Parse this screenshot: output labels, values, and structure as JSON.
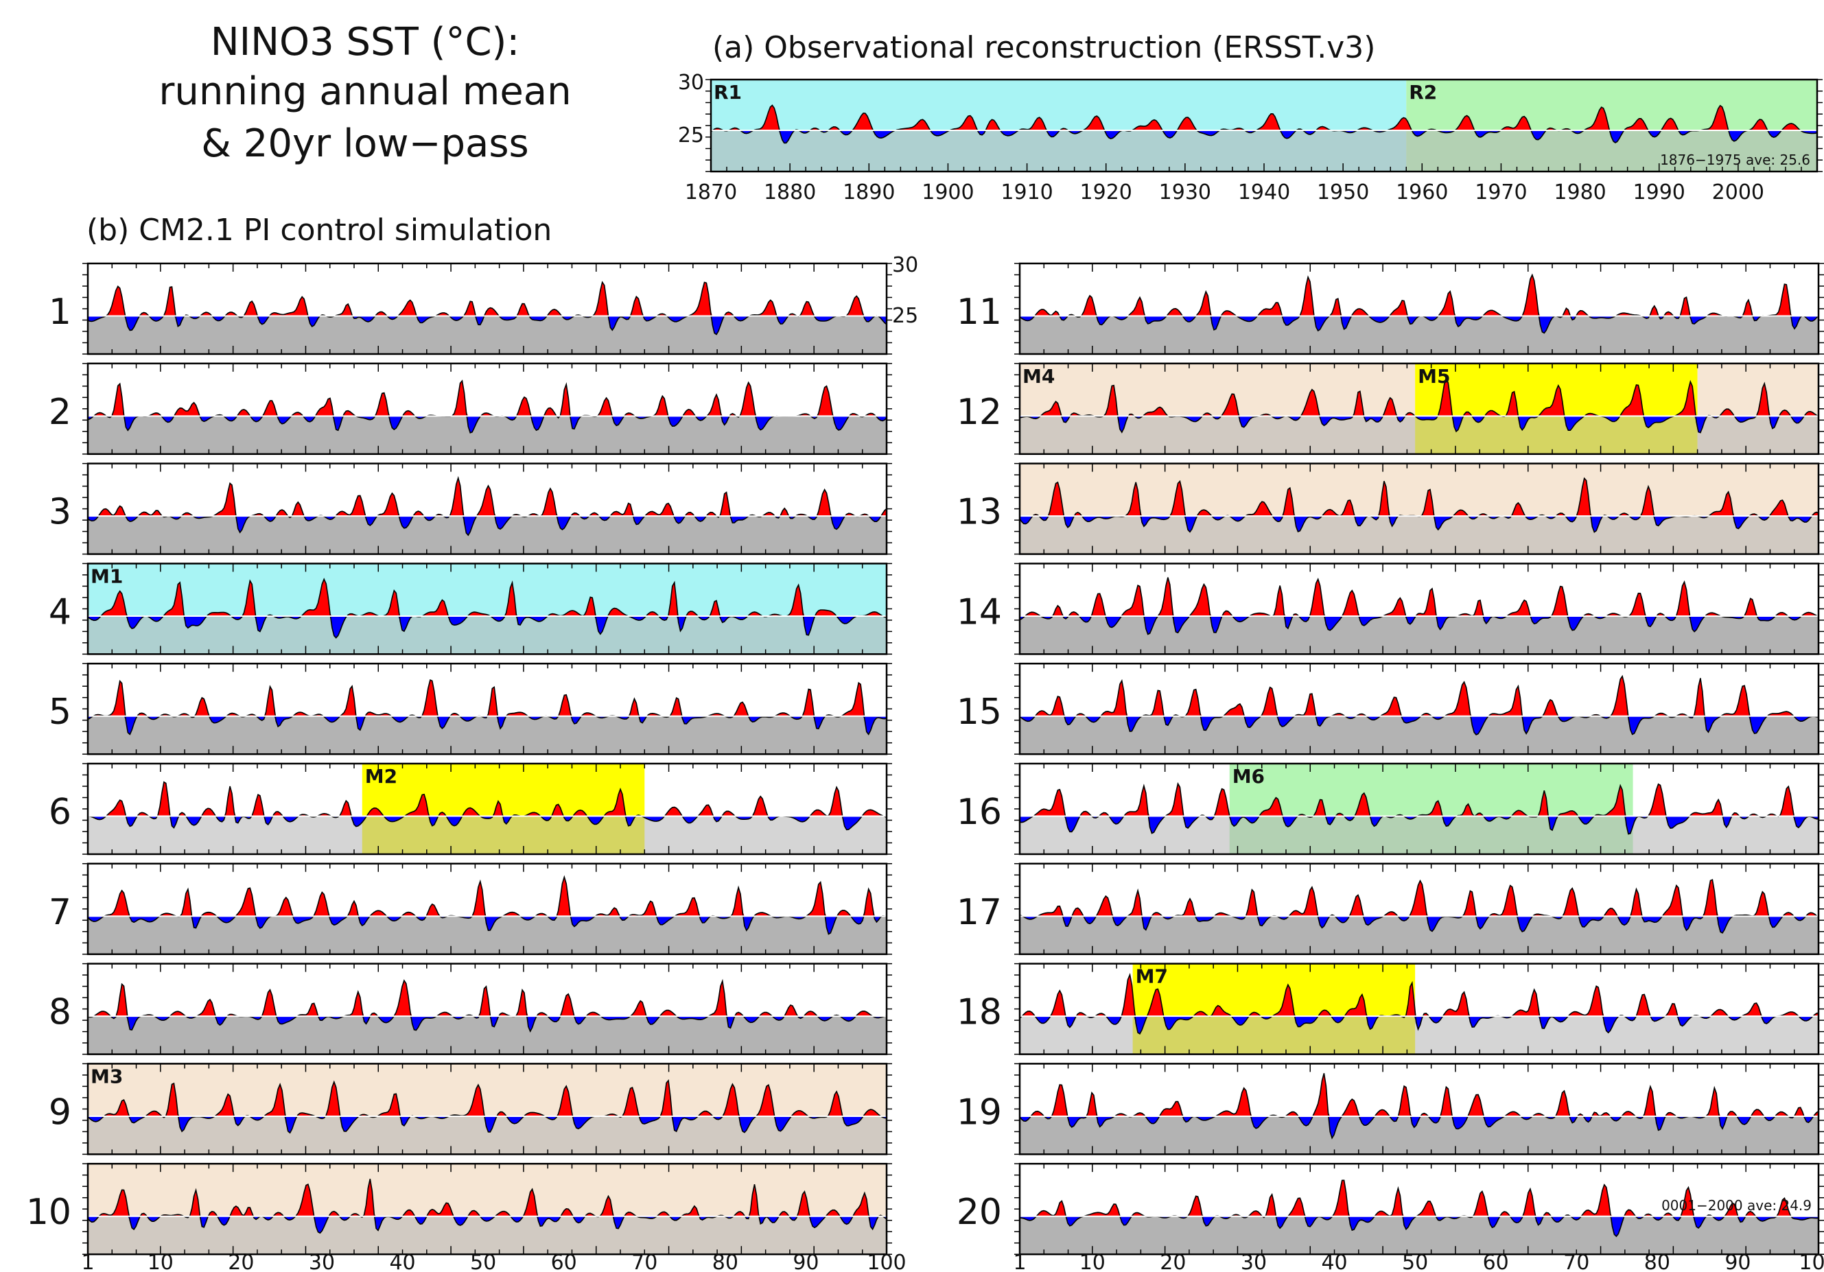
{
  "figure": {
    "title_lines": [
      "NINO3 SST (°C):",
      "running annual mean",
      "& 20yr low−pass"
    ],
    "panel_a_title": "(a) Observational reconstruction (ERSST.v3)",
    "panel_b_title": "(b) CM2.1 PI control simulation",
    "colors": {
      "warm": "#ff0000",
      "cold": "#0000ff",
      "base_fill": "#b3b3b3",
      "cyan": "#a8f4f4",
      "green": "#b3f5b3",
      "tan": "#f6e6d4",
      "yellow": "#ffff00"
    }
  },
  "chart_data": [
    {
      "type": "area",
      "panel": "a",
      "title": "(a) Observational reconstruction (ERSST.v3)",
      "xlim": [
        1870,
        2010
      ],
      "ylim": [
        23,
        30
      ],
      "x_ticks": [
        "1870",
        "1880",
        "1890",
        "1900",
        "1910",
        "1920",
        "1930",
        "1940",
        "1950",
        "1960",
        "1970",
        "1980",
        "1990",
        "2000"
      ],
      "y_ticks": [
        "30",
        "25"
      ],
      "baseline_mean": 25.6,
      "annotation": "1876−1975 ave: 25.6",
      "highlight_regions": [
        {
          "label": "R1",
          "start": 1870,
          "end": 1958,
          "color": "cyan"
        },
        {
          "label": "R2",
          "start": 1958,
          "end": 2010,
          "color": "green"
        }
      ],
      "series": [
        {
          "name": "running annual mean",
          "peaks": [
            [
              1877.8,
              27.7
            ],
            [
              1889.5,
              27.1
            ],
            [
              1896.8,
              26.8
            ],
            [
              1902.8,
              27.0
            ],
            [
              1905.5,
              26.9
            ],
            [
              1911.5,
              26.8
            ],
            [
              1918.8,
              26.7
            ],
            [
              1926.0,
              26.9
            ],
            [
              1930.5,
              26.9
            ],
            [
              1941.0,
              27.3
            ],
            [
              1957.8,
              26.9
            ],
            [
              1965.8,
              26.7
            ],
            [
              1972.8,
              26.9
            ],
            [
              1982.8,
              27.7
            ],
            [
              1987.5,
              27.0
            ],
            [
              1991.8,
              26.9
            ],
            [
              1997.8,
              28.1
            ],
            [
              2002.8,
              26.6
            ],
            [
              2007.0,
              26.2
            ]
          ]
        }
      ]
    },
    {
      "type": "area",
      "panel": "b",
      "title": "(b) CM2.1 PI control simulation",
      "xlim": [
        1,
        100
      ],
      "ylim": [
        22,
        30
      ],
      "x_ticks": [
        "1",
        "10",
        "20",
        "30",
        "40",
        "50",
        "60",
        "70",
        "80",
        "90",
        "100"
      ],
      "y_ticks": [
        "30",
        "25"
      ],
      "baseline_mean": 24.9,
      "annotation": "0001−2000 ave: 24.9",
      "rows": [
        {
          "label": "1",
          "col": 0
        },
        {
          "label": "2",
          "col": 0
        },
        {
          "label": "3",
          "col": 0
        },
        {
          "label": "4",
          "col": 0,
          "box": {
            "label": "M1",
            "start": 1,
            "end": 100,
            "color": "cyan"
          }
        },
        {
          "label": "5",
          "col": 0
        },
        {
          "label": "6",
          "col": 0,
          "box": {
            "label": "M2",
            "start": 35,
            "end": 70,
            "color": "yellow"
          }
        },
        {
          "label": "7",
          "col": 0
        },
        {
          "label": "8",
          "col": 0
        },
        {
          "label": "9",
          "col": 0,
          "box": {
            "label": "M3",
            "start": 1,
            "end": 100,
            "color": "tan"
          }
        },
        {
          "label": "10",
          "col": 0,
          "box": {
            "label": "",
            "start": 1,
            "end": 100,
            "color": "tan"
          }
        },
        {
          "label": "11",
          "col": 1
        },
        {
          "label": "12",
          "col": 1,
          "boxes": [
            {
              "label": "M4",
              "start": 1,
              "end": 50,
              "color": "tan"
            },
            {
              "label": "M5",
              "start": 50,
              "end": 85,
              "color": "yellow"
            },
            {
              "label": "",
              "start": 85,
              "end": 100,
              "color": "tan"
            }
          ]
        },
        {
          "label": "13",
          "col": 1,
          "box": {
            "label": "",
            "start": 1,
            "end": 100,
            "color": "tan"
          }
        },
        {
          "label": "14",
          "col": 1
        },
        {
          "label": "15",
          "col": 1
        },
        {
          "label": "16",
          "col": 1,
          "box": {
            "label": "M6",
            "start": 27,
            "end": 77,
            "color": "green"
          }
        },
        {
          "label": "17",
          "col": 1
        },
        {
          "label": "18",
          "col": 1,
          "box": {
            "label": "M7",
            "start": 15,
            "end": 50,
            "color": "yellow"
          }
        },
        {
          "label": "19",
          "col": 1
        },
        {
          "label": "20",
          "col": 1
        }
      ]
    }
  ]
}
